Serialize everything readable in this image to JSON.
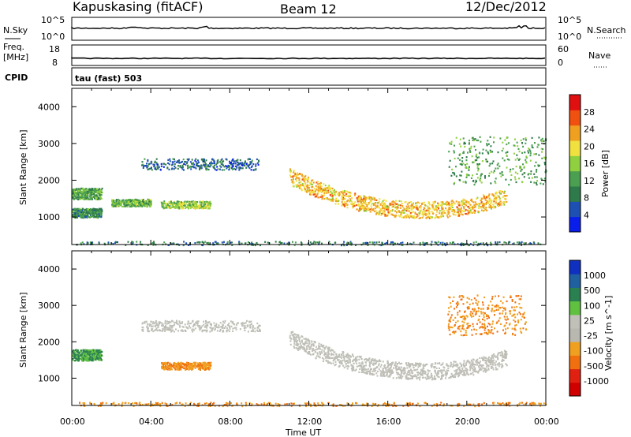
{
  "header": {
    "station": "Kapuskasing (fitACF)",
    "beam": "Beam 12",
    "date": "12/Dec/2012"
  },
  "panels": {
    "noise": {
      "left_label": "N.Sky",
      "right_label": "N.Search",
      "left_ticks": [
        "10^5",
        "10^0"
      ],
      "right_ticks": [
        "10^5",
        "10^0"
      ]
    },
    "freq": {
      "left_label_1": "Freq.",
      "left_label_2": "[MHz]",
      "right_label": "Nave",
      "left_ticks": [
        "18",
        "8"
      ],
      "right_ticks": [
        "60",
        "0"
      ]
    },
    "cpid": {
      "label": "CPID",
      "text": "tau (fast) 503"
    }
  },
  "colors": {
    "power_scale": [
      "#0a1eeb",
      "#1e50b4",
      "#2f7a4a",
      "#4aa050",
      "#90d040",
      "#f0e040",
      "#f0a020",
      "#f05010",
      "#e01010"
    ],
    "velocity_scale": [
      "#1030c0",
      "#1e60a0",
      "#2a8050",
      "#60c040",
      "#c0c0b8",
      "#b8b8b0",
      "#f0a020",
      "#f07010",
      "#e02010",
      "#d00000"
    ]
  },
  "chart_data": [
    {
      "type": "heatmap",
      "title": "",
      "xlabel": "",
      "ylabel": "Slant Range [km]",
      "x_ticks": [
        "00:00",
        "04:00",
        "08:00",
        "12:00",
        "16:00",
        "20:00",
        "00:00"
      ],
      "y_ticks": [
        "1000",
        "2000",
        "3000",
        "4000"
      ],
      "ylim": [
        250,
        4500
      ],
      "colorbar": {
        "label": "Power [dB]",
        "ticks": [
          "4",
          "8",
          "12",
          "16",
          "20",
          "24",
          "28"
        ],
        "range": [
          0,
          32
        ]
      },
      "features": [
        {
          "kind": "band",
          "t": [
            0.0,
            1.5
          ],
          "range": [
            1500,
            1800
          ],
          "level": 12
        },
        {
          "kind": "band",
          "t": [
            0.0,
            1.5
          ],
          "range": [
            1000,
            1250
          ],
          "level": 10
        },
        {
          "kind": "band",
          "t": [
            2.0,
            4.0
          ],
          "range": [
            1300,
            1500
          ],
          "level": 14
        },
        {
          "kind": "band",
          "t": [
            4.5,
            7.0
          ],
          "range": [
            1250,
            1450
          ],
          "level": 16
        },
        {
          "kind": "band",
          "t": [
            3.5,
            9.5
          ],
          "range": [
            2300,
            2600
          ],
          "level": 6
        },
        {
          "kind": "curve",
          "t": [
            11.0,
            22.0
          ],
          "range_min": 850,
          "range_start": 1900,
          "level": 22
        },
        {
          "kind": "band",
          "t": [
            19.0,
            24.0
          ],
          "range": [
            1900,
            3200
          ],
          "level": 12
        },
        {
          "kind": "band",
          "t": [
            0.0,
            24.0
          ],
          "range": [
            250,
            350
          ],
          "level": 8
        }
      ]
    },
    {
      "type": "heatmap",
      "title": "",
      "xlabel": "Time UT",
      "ylabel": "Slant Range [km]",
      "x_ticks": [
        "00:00",
        "04:00",
        "08:00",
        "12:00",
        "16:00",
        "20:00",
        "00:00"
      ],
      "y_ticks": [
        "1000",
        "2000",
        "3000",
        "4000"
      ],
      "ylim": [
        250,
        4500
      ],
      "colorbar": {
        "label": "Velocity [m s^-1]",
        "ticks": [
          "1000",
          "500",
          "100",
          "25",
          "-25",
          "-100",
          "-500",
          "-1000"
        ],
        "range": [
          -1250,
          1250
        ]
      },
      "features": [
        {
          "kind": "band",
          "t": [
            3.5,
            9.5
          ],
          "range": [
            2300,
            2600
          ],
          "velocity": 0
        },
        {
          "kind": "curve",
          "t": [
            11.0,
            22.0
          ],
          "range_min": 850,
          "range_start": 1900,
          "velocity": 0
        },
        {
          "kind": "band",
          "t": [
            0.0,
            1.5
          ],
          "range": [
            1500,
            1800
          ],
          "velocity": 150
        },
        {
          "kind": "band",
          "t": [
            4.5,
            7.0
          ],
          "range": [
            1250,
            1450
          ],
          "velocity": -200
        },
        {
          "kind": "band",
          "t": [
            19.0,
            23.0
          ],
          "range": [
            2200,
            3300
          ],
          "velocity": -300
        },
        {
          "kind": "band",
          "t": [
            0.0,
            24.0
          ],
          "range": [
            250,
            350
          ],
          "velocity": -100
        }
      ]
    }
  ]
}
